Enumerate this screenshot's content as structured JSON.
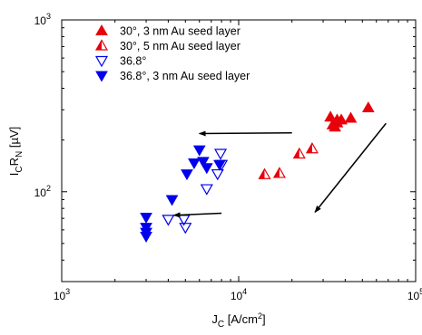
{
  "chart_data": {
    "type": "scatter",
    "title": "",
    "xlabel": {
      "base": "J",
      "sub": "C",
      "unit": " [A/cm",
      "sup": "2",
      "close": "]"
    },
    "ylabel": {
      "p1": "I",
      "s1": "C",
      "p2": "R",
      "s2": "N",
      "unit": " [µV]"
    },
    "xscale": "log",
    "yscale": "log",
    "xlim": [
      1000,
      100000
    ],
    "ylim": [
      30,
      1000
    ],
    "x_ticks": [
      {
        "value": 1000,
        "base": "10",
        "exp": "3"
      },
      {
        "value": 10000,
        "base": "10",
        "exp": "4"
      },
      {
        "value": 100000,
        "base": "10",
        "exp": "5"
      }
    ],
    "y_ticks": [
      {
        "value": 100,
        "base": "10",
        "exp": "2"
      },
      {
        "value": 1000,
        "base": "10",
        "exp": "3"
      }
    ],
    "grid": false,
    "legend_position": "top-left",
    "series": [
      {
        "name": "30°,   3 nm Au seed layer",
        "marker": "triangle-up-filled",
        "color": "#e8000b",
        "points": [
          [
            33000,
            272
          ],
          [
            34000,
            245
          ],
          [
            35000,
            238
          ],
          [
            36000,
            252
          ],
          [
            38000,
            262
          ],
          [
            43000,
            268
          ],
          [
            54000,
            308
          ],
          [
            36000,
            262
          ]
        ]
      },
      {
        "name": "30°,   5 nm Au seed layer",
        "marker": "triangle-up-half",
        "color": "#e8000b",
        "points": [
          [
            14000,
            126
          ],
          [
            17000,
            128
          ],
          [
            22000,
            166
          ],
          [
            26000,
            178
          ]
        ]
      },
      {
        "name": "36.8°",
        "marker": "triangle-down-open",
        "color": "#0000ee",
        "points": [
          [
            4000,
            69
          ],
          [
            4900,
            69
          ],
          [
            5000,
            62
          ],
          [
            6600,
            104
          ],
          [
            7600,
            127
          ],
          [
            7900,
            167
          ],
          [
            8000,
            144
          ]
        ]
      },
      {
        "name": "36.8°, 3 nm Au seed layer",
        "marker": "triangle-down-filled",
        "color": "#0000ee",
        "points": [
          [
            3000,
            71
          ],
          [
            3000,
            62
          ],
          [
            3000,
            58
          ],
          [
            3000,
            55
          ],
          [
            4200,
            90
          ],
          [
            5100,
            127
          ],
          [
            5600,
            147
          ],
          [
            6000,
            175
          ],
          [
            6300,
            150
          ],
          [
            6600,
            138
          ],
          [
            7800,
            144
          ]
        ]
      }
    ],
    "annotations": [
      {
        "type": "arrow",
        "from": [
          20000,
          220
        ],
        "to": [
          6000,
          218
        ]
      },
      {
        "type": "arrow",
        "from": [
          8000,
          75
        ],
        "to": [
          4300,
          73
        ]
      },
      {
        "type": "arrow",
        "from": [
          68000,
          250
        ],
        "to": [
          27000,
          76
        ]
      }
    ]
  }
}
